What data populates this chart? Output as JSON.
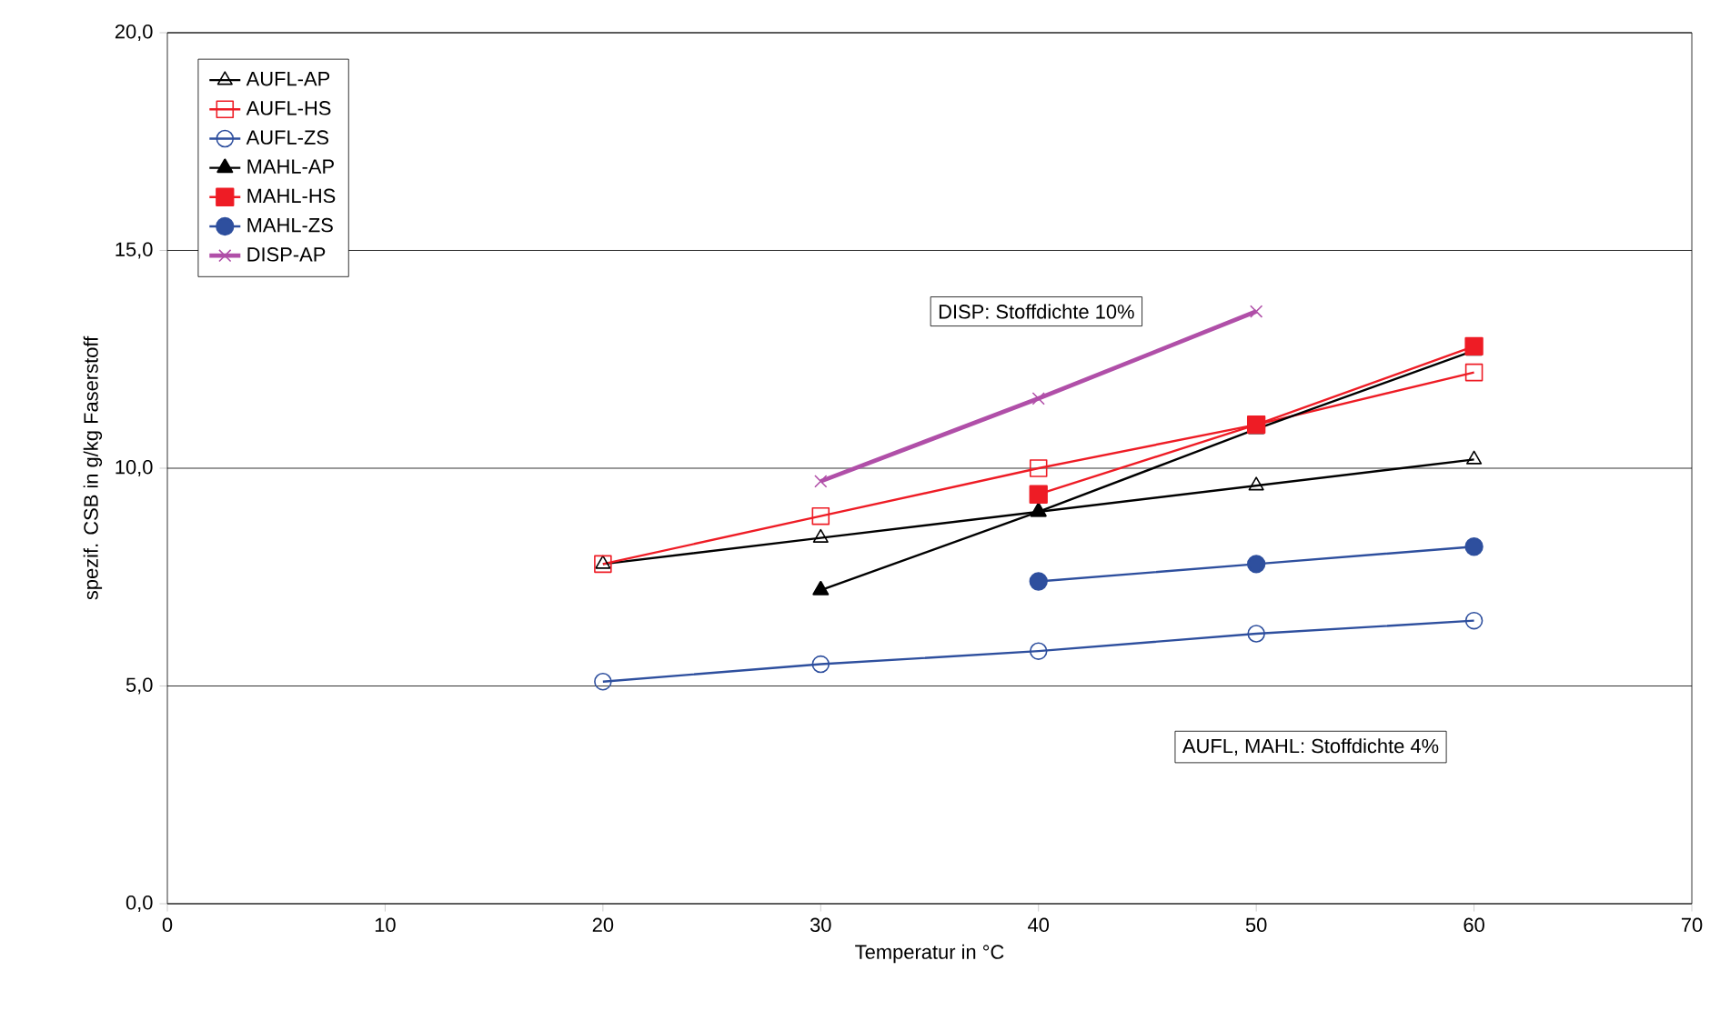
{
  "chart_data": {
    "type": "line",
    "xlabel": "Temperatur in °C",
    "ylabel": "spezif. CSB in g/kg Faserstoff",
    "xlim": [
      0,
      70
    ],
    "xticks": [
      0,
      10,
      20,
      30,
      40,
      50,
      60,
      70
    ],
    "ylim": [
      0,
      20
    ],
    "yticks": [
      {
        "value": 0,
        "label": "0,0"
      },
      {
        "value": 5,
        "label": "5,0"
      },
      {
        "value": 10,
        "label": "10,0"
      },
      {
        "value": 15,
        "label": "15,0"
      },
      {
        "value": 20,
        "label": "20,0"
      }
    ],
    "grid": "y",
    "legend": "top left",
    "line_style": "solid",
    "annotations": [
      "DISP: Stoffdichte 10%",
      "AUFL, MAHL: Stoffdichte 4%"
    ],
    "series": [
      {
        "name": "AUFL-AP",
        "color": "#000000",
        "marker": "triangle",
        "x": [
          20,
          30,
          40,
          50,
          60
        ],
        "values": [
          7.8,
          8.4,
          9.0,
          9.6,
          10.2
        ]
      },
      {
        "name": "AUFL-HS",
        "color": "#ee1c25",
        "marker": "square",
        "x": [
          20,
          30,
          40,
          50,
          60
        ],
        "values": [
          7.8,
          8.9,
          10.0,
          11.0,
          12.2
        ]
      },
      {
        "name": "AUFL-ZS",
        "color": "#2e4f9e",
        "marker": "circle",
        "x": [
          20,
          30,
          40,
          50,
          60
        ],
        "values": [
          5.1,
          5.5,
          5.8,
          6.2,
          6.5
        ]
      },
      {
        "name": "MAHL-AP",
        "color": "#000000",
        "marker": "triangle",
        "x": [
          30,
          40,
          50,
          60
        ],
        "values": [
          7.2,
          9.0,
          10.9,
          12.7
        ]
      },
      {
        "name": "MAHL-HS",
        "color": "#ee1c25",
        "marker": "square",
        "x": [
          40,
          50,
          60
        ],
        "values": [
          9.4,
          11.0,
          12.8
        ]
      },
      {
        "name": "MAHL-ZS",
        "color": "#2e4f9e",
        "marker": "circle",
        "x": [
          40,
          50,
          60
        ],
        "values": [
          7.4,
          7.8,
          8.2
        ]
      },
      {
        "name": "DISP-AP",
        "color": "#b04fa8",
        "marker": "cross",
        "x": [
          30,
          40,
          50
        ],
        "values": [
          9.7,
          11.6,
          13.6
        ]
      }
    ]
  }
}
